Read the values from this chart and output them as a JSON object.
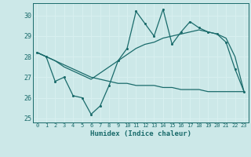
{
  "title": "",
  "xlabel": "Humidex (Indice chaleur)",
  "ylabel": "",
  "xlim": [
    -0.5,
    23.5
  ],
  "ylim": [
    24.8,
    30.6
  ],
  "yticks": [
    25,
    26,
    27,
    28,
    29,
    30
  ],
  "xticks": [
    0,
    1,
    2,
    3,
    4,
    5,
    6,
    7,
    8,
    9,
    10,
    11,
    12,
    13,
    14,
    15,
    16,
    17,
    18,
    19,
    20,
    21,
    22,
    23
  ],
  "background_color": "#cce8e8",
  "line_color": "#1a6b6b",
  "grid_color": "#e8e8e8",
  "line1_x": [
    0,
    1,
    2,
    3,
    4,
    5,
    6,
    7,
    8,
    9,
    10,
    11,
    12,
    13,
    14,
    15,
    16,
    17,
    18,
    19,
    20,
    21,
    22,
    23
  ],
  "line1_y": [
    28.2,
    28.0,
    26.8,
    27.0,
    26.1,
    26.0,
    25.2,
    25.6,
    26.6,
    27.8,
    28.4,
    30.2,
    29.6,
    29.0,
    30.3,
    28.6,
    29.2,
    29.7,
    29.4,
    29.2,
    29.1,
    28.7,
    27.4,
    26.3
  ],
  "line2_x": [
    0,
    1,
    2,
    3,
    4,
    5,
    6,
    7,
    8,
    9,
    10,
    11,
    12,
    13,
    14,
    15,
    16,
    17,
    18,
    19,
    20,
    21,
    22,
    23
  ],
  "line2_y": [
    28.2,
    28.0,
    27.8,
    27.5,
    27.3,
    27.1,
    26.9,
    27.2,
    27.5,
    27.8,
    28.1,
    28.4,
    28.6,
    28.7,
    28.9,
    29.0,
    29.1,
    29.2,
    29.3,
    29.2,
    29.1,
    28.9,
    28.0,
    26.3
  ],
  "line3_x": [
    0,
    1,
    2,
    3,
    4,
    5,
    6,
    7,
    8,
    9,
    10,
    11,
    12,
    13,
    14,
    15,
    16,
    17,
    18,
    19,
    20,
    21,
    22,
    23
  ],
  "line3_y": [
    28.2,
    28.0,
    27.8,
    27.6,
    27.4,
    27.2,
    27.0,
    26.9,
    26.8,
    26.7,
    26.7,
    26.6,
    26.6,
    26.6,
    26.5,
    26.5,
    26.4,
    26.4,
    26.4,
    26.3,
    26.3,
    26.3,
    26.3,
    26.3
  ]
}
